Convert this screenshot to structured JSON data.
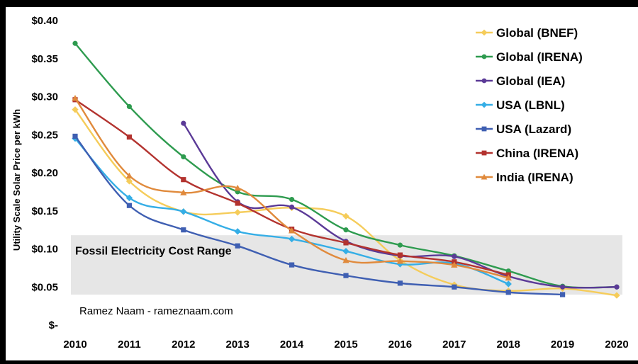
{
  "chart_data": {
    "type": "line",
    "title": "",
    "xlabel": "",
    "ylabel": "Utility Scale Solar Price per kWh",
    "x": [
      2010,
      2011,
      2012,
      2013,
      2014,
      2015,
      2016,
      2017,
      2018,
      2019,
      2020
    ],
    "x_tick_labels": [
      "2010",
      "2011",
      "2012",
      "2013",
      "2014",
      "2015",
      "2016",
      "2017",
      "2018",
      "2019",
      "2020"
    ],
    "y_tick_labels": [
      "$-",
      "$0.05",
      "$0.10",
      "$0.15",
      "$0.20",
      "$0.25",
      "$0.30",
      "$0.35",
      "$0.40"
    ],
    "y_ticks": [
      0,
      0.05,
      0.1,
      0.15,
      0.2,
      0.25,
      0.3,
      0.35,
      0.4
    ],
    "ylim": [
      0,
      0.4
    ],
    "grid": false,
    "legend_position": "top-right",
    "band": {
      "label": "Fossil Electricity Cost Range",
      "from": 0.04,
      "to": 0.118,
      "color": "#e6e6e6"
    },
    "annotations": [
      "Ramez Naam - rameznaam.com"
    ],
    "series": [
      {
        "name": "Global (BNEF)",
        "color": "#f5cc5a",
        "marker": "diamond",
        "values": [
          0.283,
          0.189,
          0.149,
          0.148,
          0.154,
          0.143,
          0.085,
          0.053,
          0.045,
          0.048,
          0.039
        ]
      },
      {
        "name": "Global (IRENA)",
        "color": "#2e9b4f",
        "marker": "circle",
        "values": [
          0.37,
          0.287,
          0.221,
          0.175,
          0.165,
          0.125,
          0.105,
          0.091,
          0.071,
          0.051,
          0.05
        ]
      },
      {
        "name": "Global (IEA)",
        "color": "#5b3a97",
        "marker": "circle",
        "values": [
          null,
          null,
          0.265,
          0.162,
          0.155,
          0.11,
          0.091,
          0.09,
          0.064,
          0.05,
          0.05
        ]
      },
      {
        "name": "USA (LBNL)",
        "color": "#35aee6",
        "marker": "diamond",
        "values": [
          0.245,
          0.167,
          0.149,
          0.123,
          0.113,
          0.097,
          0.08,
          0.081,
          0.054,
          null,
          null
        ]
      },
      {
        "name": "USA (Lazard)",
        "color": "#3f5fb2",
        "marker": "square",
        "values": [
          0.248,
          0.157,
          0.125,
          0.104,
          0.079,
          0.065,
          0.055,
          0.05,
          0.043,
          0.04,
          null
        ]
      },
      {
        "name": "China (IRENA)",
        "color": "#b3332f",
        "marker": "square",
        "values": [
          0.296,
          0.247,
          0.191,
          0.16,
          0.126,
          0.108,
          0.092,
          0.083,
          0.066,
          null,
          null
        ]
      },
      {
        "name": "India (IRENA)",
        "color": "#e08a3c",
        "marker": "triangle",
        "values": [
          0.298,
          0.196,
          0.174,
          0.18,
          0.124,
          0.085,
          0.084,
          0.079,
          0.062,
          null,
          null
        ]
      }
    ]
  }
}
